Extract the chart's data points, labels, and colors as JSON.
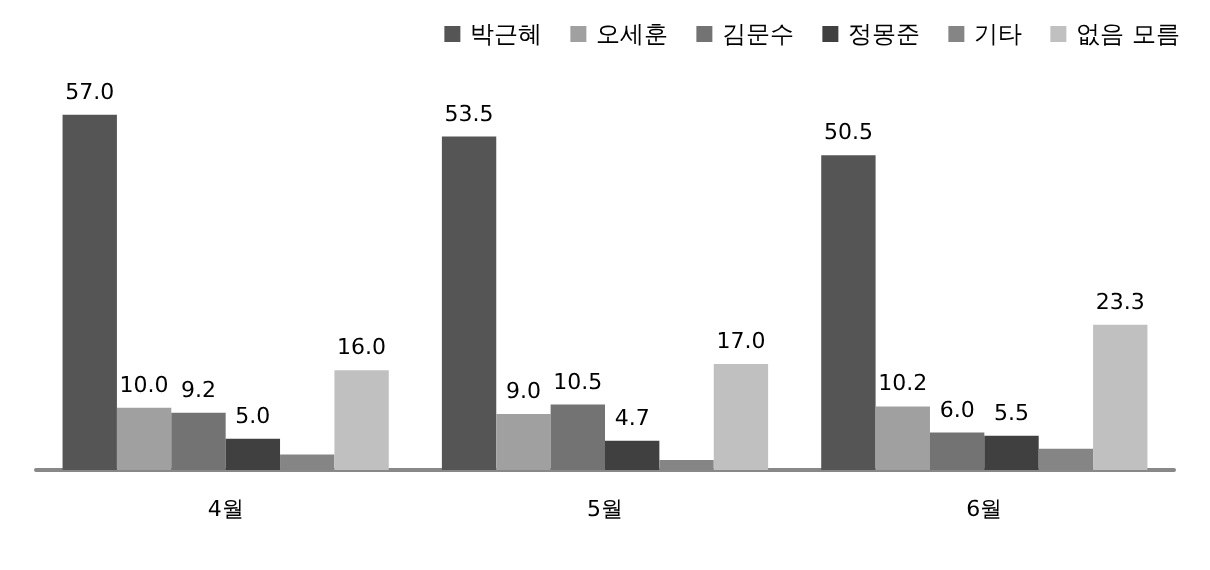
{
  "chart_data": {
    "type": "bar",
    "categories": [
      "4월",
      "5월",
      "6월"
    ],
    "legend": "top right",
    "series": [
      {
        "name": "박근혜",
        "color": "#555555",
        "values": [
          57.0,
          53.5,
          50.5
        ],
        "value_labels": [
          "57.0",
          "53.5",
          "50.5"
        ]
      },
      {
        "name": "오세훈",
        "color": "#a0a0a0",
        "values": [
          10.0,
          9.0,
          10.2
        ],
        "value_labels": [
          "10.0",
          "9.0",
          "10.2"
        ]
      },
      {
        "name": "김문수",
        "color": "#737373",
        "values": [
          9.2,
          10.5,
          6.0
        ],
        "value_labels": [
          "9.2",
          "10.5",
          "6.0"
        ]
      },
      {
        "name": "정몽준",
        "color": "#404040",
        "values": [
          5.0,
          4.7,
          5.5
        ],
        "value_labels": [
          "5.0",
          "4.7",
          "5.5"
        ]
      },
      {
        "name": "기타",
        "color": "#858585",
        "values": [
          2.5,
          1.6,
          3.4
        ],
        "value_labels": [
          null,
          null,
          null
        ]
      },
      {
        "name": "없음 모름",
        "color": "#c0c0c0",
        "values": [
          16.0,
          17.0,
          23.3
        ],
        "value_labels": [
          "16.0",
          "17.0",
          "23.3"
        ]
      }
    ]
  }
}
